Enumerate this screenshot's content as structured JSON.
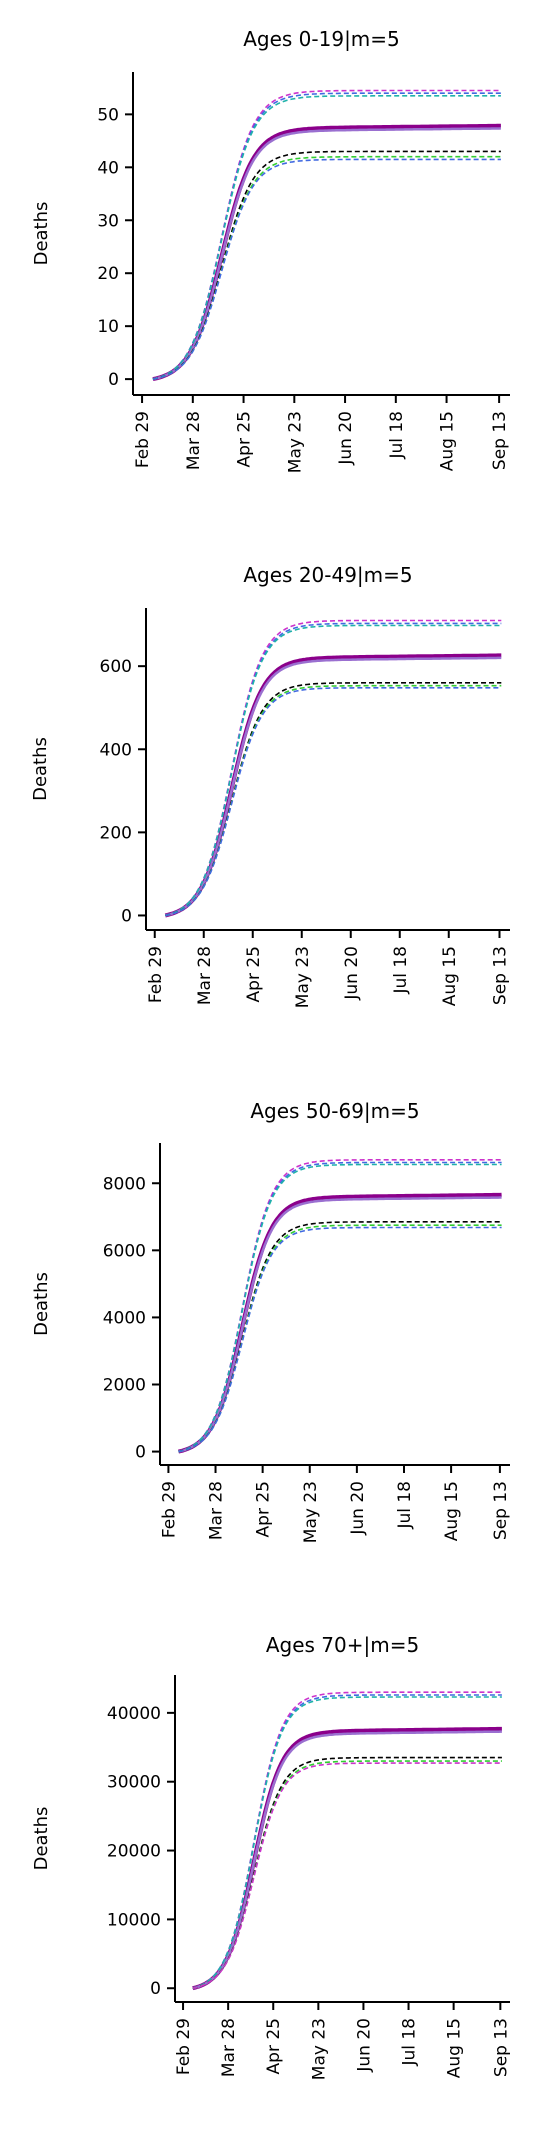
{
  "chart_data": [
    {
      "type": "line",
      "title": "Ages 0-19|m=5",
      "ylabel": "Deaths",
      "xlabel": "",
      "x_ticks": [
        "Feb 29",
        "Mar 28",
        "Apr 25",
        "May 23",
        "Jun 20",
        "Jul 18",
        "Aug 15",
        "Sep 13"
      ],
      "y_ticks": [
        0,
        10,
        20,
        30,
        40,
        50
      ],
      "ylim": [
        -3,
        58
      ],
      "x_range": [
        "2020-02-24",
        "2020-09-19"
      ],
      "curve_start": "2020-03-06",
      "series": [
        {
          "style": "median",
          "color": "#8b008b",
          "final": 48
        },
        {
          "style": "median",
          "color": "#9a6fd0",
          "final": 47.5
        },
        {
          "style": "dashed",
          "color": "#cc33cc",
          "final": 54.5
        },
        {
          "style": "dashed",
          "color": "#4169e1",
          "final": 54
        },
        {
          "style": "dashed",
          "color": "#20b2aa",
          "final": 53.5
        },
        {
          "style": "dashed",
          "color": "#000000",
          "final": 43
        },
        {
          "style": "dashed",
          "color": "#32cd32",
          "final": 42
        },
        {
          "style": "dashed",
          "color": "#4169e1",
          "final": 41.5
        }
      ]
    },
    {
      "type": "line",
      "title": "Ages 20-49|m=5",
      "ylabel": "Deaths",
      "xlabel": "",
      "x_ticks": [
        "Feb 29",
        "Mar 28",
        "Apr 25",
        "May 23",
        "Jun 20",
        "Jul 18",
        "Aug 15",
        "Sep 13"
      ],
      "y_ticks": [
        0,
        200,
        400,
        600
      ],
      "ylim": [
        -35,
        740
      ],
      "x_range": [
        "2020-02-24",
        "2020-09-19"
      ],
      "curve_start": "2020-03-06",
      "series": [
        {
          "style": "median",
          "color": "#8b008b",
          "final": 628
        },
        {
          "style": "median",
          "color": "#9a6fd0",
          "final": 622
        },
        {
          "style": "dashed",
          "color": "#cc33cc",
          "final": 710
        },
        {
          "style": "dashed",
          "color": "#4169e1",
          "final": 703
        },
        {
          "style": "dashed",
          "color": "#20b2aa",
          "final": 698
        },
        {
          "style": "dashed",
          "color": "#000000",
          "final": 560
        },
        {
          "style": "dashed",
          "color": "#32cd32",
          "final": 553
        },
        {
          "style": "dashed",
          "color": "#4169e1",
          "final": 548
        }
      ]
    },
    {
      "type": "line",
      "title": "Ages 50-69|m=5",
      "ylabel": "Deaths",
      "xlabel": "",
      "x_ticks": [
        "Feb 29",
        "Mar 28",
        "Apr 25",
        "May 23",
        "Jun 20",
        "Jul 18",
        "Aug 15",
        "Sep 13"
      ],
      "y_ticks": [
        0,
        2000,
        4000,
        6000,
        8000
      ],
      "ylim": [
        -400,
        9200
      ],
      "x_range": [
        "2020-02-24",
        "2020-09-19"
      ],
      "curve_start": "2020-03-06",
      "series": [
        {
          "style": "median",
          "color": "#8b008b",
          "final": 7680
        },
        {
          "style": "median",
          "color": "#9a6fd0",
          "final": 7600
        },
        {
          "style": "dashed",
          "color": "#cc33cc",
          "final": 8700
        },
        {
          "style": "dashed",
          "color": "#4169e1",
          "final": 8620
        },
        {
          "style": "dashed",
          "color": "#20b2aa",
          "final": 8560
        },
        {
          "style": "dashed",
          "color": "#000000",
          "final": 6850
        },
        {
          "style": "dashed",
          "color": "#32cd32",
          "final": 6750
        },
        {
          "style": "dashed",
          "color": "#4169e1",
          "final": 6680
        }
      ]
    },
    {
      "type": "line",
      "title": "Ages 70+|m=5",
      "ylabel": "Deaths",
      "xlabel": "",
      "x_ticks": [
        "Feb 29",
        "Mar 28",
        "Apr 25",
        "May 23",
        "Jun 20",
        "Jul 18",
        "Aug 15",
        "Sep 13"
      ],
      "y_ticks": [
        0,
        10000,
        20000,
        30000,
        40000
      ],
      "ylim": [
        -2000,
        45500
      ],
      "x_range": [
        "2020-02-24",
        "2020-09-19"
      ],
      "curve_start": "2020-03-06",
      "series": [
        {
          "style": "median",
          "color": "#8b008b",
          "final": 37800
        },
        {
          "style": "median",
          "color": "#9a6fd0",
          "final": 37400
        },
        {
          "style": "dashed",
          "color": "#cc33cc",
          "final": 43000
        },
        {
          "style": "dashed",
          "color": "#4169e1",
          "final": 42600
        },
        {
          "style": "dashed",
          "color": "#20b2aa",
          "final": 42300
        },
        {
          "style": "dashed",
          "color": "#000000",
          "final": 33500
        },
        {
          "style": "dashed",
          "color": "#32cd32",
          "final": 33000
        },
        {
          "style": "dashed",
          "color": "#cc33cc",
          "final": 32700
        }
      ]
    }
  ]
}
